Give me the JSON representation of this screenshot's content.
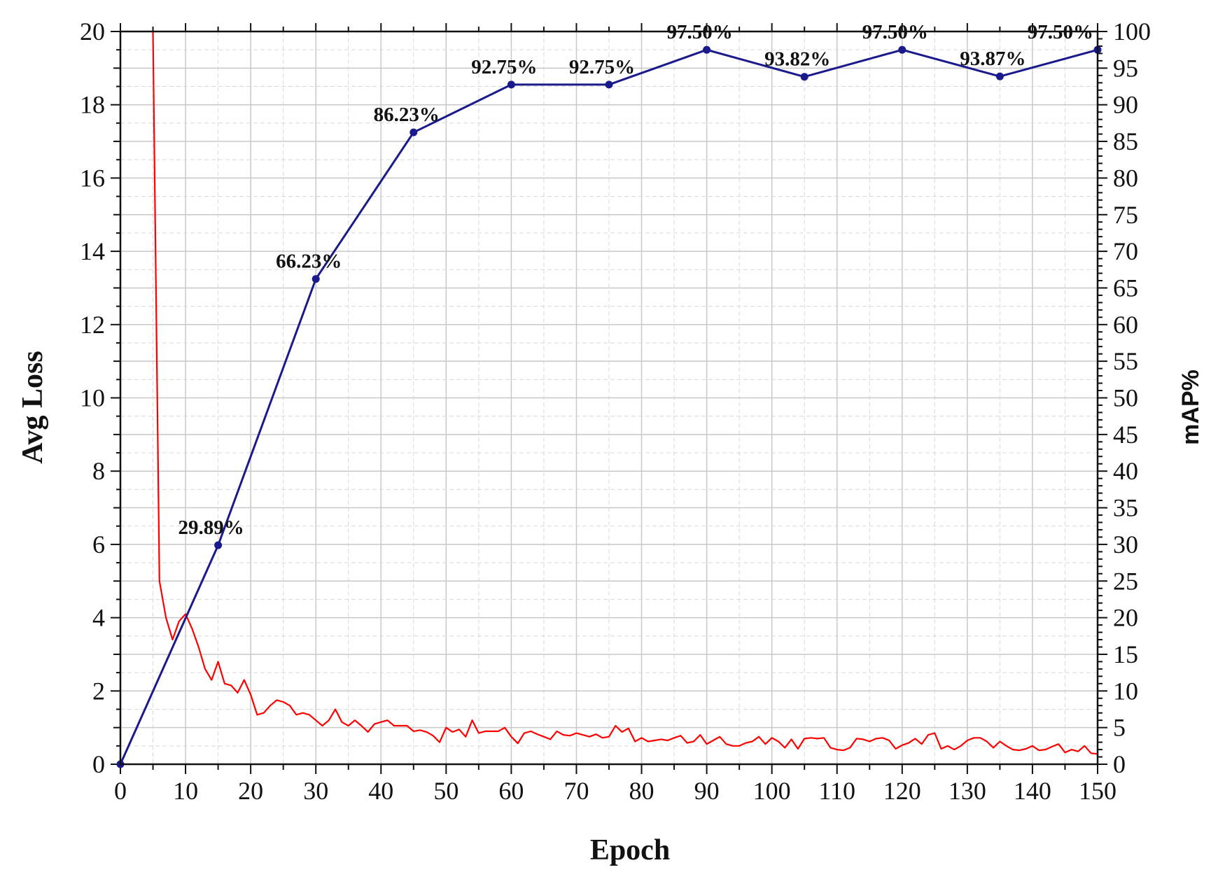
{
  "chart_data": {
    "type": "line",
    "xlabel": "Epoch",
    "ylabel_left": "Avg Loss",
    "ylabel_right": "mAP%",
    "xlim": [
      0,
      150
    ],
    "ylim_left": [
      0,
      20
    ],
    "ylim_right": [
      0,
      100
    ],
    "x_ticks": [
      "0",
      "10",
      "20",
      "30",
      "40",
      "50",
      "60",
      "70",
      "80",
      "90",
      "100",
      "110",
      "120",
      "130",
      "140",
      "150"
    ],
    "y_left_ticks": [
      "0",
      "2",
      "4",
      "6",
      "8",
      "10",
      "12",
      "14",
      "16",
      "18",
      "20"
    ],
    "y_right_ticks": [
      "0",
      "5",
      "10",
      "15",
      "20",
      "25",
      "30",
      "35",
      "40",
      "45",
      "50",
      "55",
      "60",
      "65",
      "70",
      "75",
      "80",
      "85",
      "90",
      "95",
      "100"
    ],
    "grid": true,
    "series": [
      {
        "axis": "left",
        "color": "#ff0000",
        "x": [
          5,
          6,
          7,
          8,
          9,
          10,
          11,
          12,
          13,
          14,
          15,
          16,
          17,
          18,
          19,
          20,
          21,
          22,
          23,
          24,
          25,
          26,
          27,
          28,
          29,
          30,
          31,
          32,
          33,
          34,
          35,
          36,
          37,
          38,
          39,
          40,
          41,
          42,
          43,
          44,
          45,
          46,
          47,
          48,
          49,
          50,
          51,
          52,
          53,
          54,
          55,
          56,
          57,
          58,
          59,
          60,
          61,
          62,
          63,
          64,
          65,
          66,
          67,
          68,
          69,
          70,
          71,
          72,
          73,
          74,
          75,
          76,
          77,
          78,
          79,
          80,
          81,
          82,
          83,
          84,
          85,
          86,
          87,
          88,
          89,
          90,
          91,
          92,
          93,
          94,
          95,
          96,
          97,
          98,
          99,
          100,
          101,
          102,
          103,
          104,
          105,
          106,
          107,
          108,
          109,
          110,
          111,
          112,
          113,
          114,
          115,
          116,
          117,
          118,
          119,
          120,
          121,
          122,
          123,
          124,
          125,
          126,
          127,
          128,
          129,
          130,
          131,
          132,
          133,
          134,
          135,
          136,
          137,
          138,
          139,
          140,
          141,
          142,
          143,
          144,
          145,
          146,
          147,
          148,
          149,
          150
        ],
        "y": [
          20,
          5.0,
          4.0,
          3.4,
          3.9,
          4.1,
          3.7,
          3.2,
          2.6,
          2.3,
          2.8,
          2.2,
          2.15,
          1.95,
          2.3,
          1.9,
          1.35,
          1.4,
          1.6,
          1.75,
          1.7,
          1.6,
          1.35,
          1.4,
          1.35,
          1.2,
          1.05,
          1.2,
          1.5,
          1.15,
          1.05,
          1.2,
          1.05,
          0.88,
          1.1,
          1.15,
          1.2,
          1.05,
          1.05,
          1.05,
          0.9,
          0.93,
          0.88,
          0.78,
          0.6,
          1.0,
          0.88,
          0.95,
          0.75,
          1.2,
          0.85,
          0.9,
          0.9,
          0.9,
          1.0,
          0.75,
          0.57,
          0.85,
          0.9,
          0.82,
          0.75,
          0.68,
          0.9,
          0.8,
          0.78,
          0.85,
          0.8,
          0.75,
          0.82,
          0.72,
          0.75,
          1.05,
          0.88,
          0.98,
          0.62,
          0.72,
          0.62,
          0.65,
          0.68,
          0.65,
          0.72,
          0.78,
          0.58,
          0.62,
          0.8,
          0.55,
          0.65,
          0.75,
          0.55,
          0.5,
          0.5,
          0.58,
          0.62,
          0.75,
          0.55,
          0.72,
          0.62,
          0.45,
          0.68,
          0.42,
          0.7,
          0.72,
          0.7,
          0.72,
          0.45,
          0.4,
          0.38,
          0.45,
          0.7,
          0.68,
          0.62,
          0.7,
          0.72,
          0.65,
          0.42,
          0.52,
          0.58,
          0.7,
          0.55,
          0.8,
          0.85,
          0.42,
          0.5,
          0.4,
          0.5,
          0.65,
          0.72,
          0.72,
          0.62,
          0.45,
          0.62,
          0.5,
          0.4,
          0.38,
          0.42,
          0.5,
          0.38,
          0.4,
          0.48,
          0.55,
          0.32,
          0.4,
          0.35,
          0.5,
          0.3,
          0.28
        ]
      },
      {
        "axis": "right",
        "color": "#1a1a8c",
        "x": [
          0,
          15,
          30,
          45,
          60,
          75,
          90,
          105,
          120,
          135,
          150
        ],
        "y": [
          0,
          29.89,
          66.23,
          86.23,
          92.75,
          92.75,
          97.5,
          93.82,
          97.5,
          93.87,
          97.5
        ],
        "labels": [
          "",
          "29.89%",
          "66.23%",
          "86.23%",
          "92.75%",
          "92.75%",
          "97.50%",
          "93.82%",
          "97.50%",
          "93.87%",
          "97.50%"
        ]
      }
    ]
  }
}
